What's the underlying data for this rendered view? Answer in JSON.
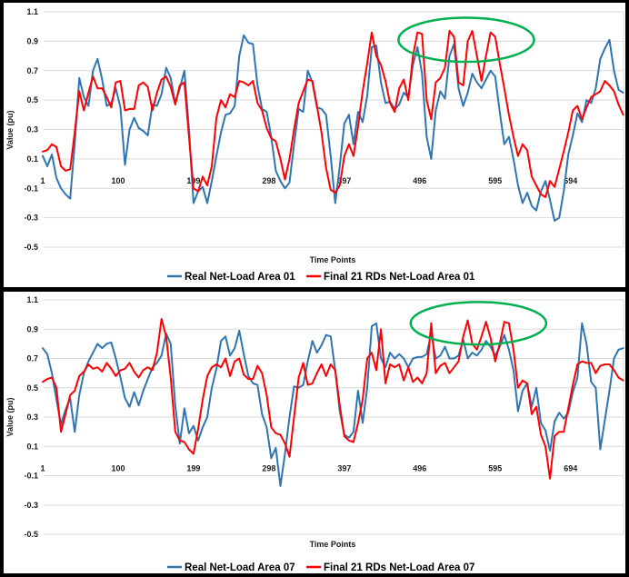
{
  "page": {
    "background": "#000000",
    "panel_background": "#FFFFFF",
    "gridline_color": "#D9D9D9",
    "annotation_color": "#00B050"
  },
  "chart_data": [
    {
      "type": "line",
      "title": "",
      "xlabel": "Time Points",
      "ylabel": "Value (pu)",
      "ylim": [
        -0.5,
        1.1
      ],
      "xlim": [
        1,
        763
      ],
      "grid": "horizontal",
      "legend_position": "bottom",
      "yticks": [
        "1.1",
        "0.9",
        "0.7",
        "0.5",
        "0.3",
        "0.1",
        "-0.1",
        "-0.3",
        "-0.5"
      ],
      "xticks": [
        1,
        100,
        199,
        298,
        397,
        496,
        595,
        694
      ],
      "x": [
        1,
        7,
        13,
        19,
        25,
        31,
        37,
        43,
        49,
        55,
        61,
        67,
        73,
        79,
        85,
        91,
        97,
        103,
        109,
        115,
        121,
        127,
        133,
        139,
        145,
        151,
        157,
        163,
        169,
        175,
        181,
        187,
        193,
        199,
        205,
        211,
        217,
        223,
        229,
        235,
        241,
        247,
        253,
        259,
        265,
        271,
        277,
        283,
        289,
        295,
        301,
        307,
        313,
        319,
        325,
        331,
        337,
        343,
        349,
        355,
        361,
        367,
        373,
        379,
        385,
        391,
        397,
        403,
        409,
        415,
        421,
        427,
        433,
        439,
        445,
        451,
        457,
        463,
        469,
        475,
        481,
        487,
        493,
        499,
        505,
        511,
        517,
        523,
        529,
        535,
        541,
        547,
        553,
        559,
        565,
        571,
        577,
        583,
        589,
        595,
        601,
        607,
        613,
        619,
        625,
        631,
        637,
        643,
        649,
        655,
        661,
        667,
        673,
        679,
        685,
        691,
        697,
        703,
        709,
        715,
        721,
        727,
        733,
        739,
        745,
        751,
        757,
        763
      ],
      "series": [
        {
          "name": "Real Net-Load Area 01",
          "color": "#2E75B6",
          "values": [
            0.12,
            0.05,
            0.13,
            -0.03,
            -0.1,
            -0.14,
            -0.17,
            0.2,
            0.65,
            0.52,
            0.46,
            0.7,
            0.78,
            0.64,
            0.46,
            0.48,
            0.58,
            0.45,
            0.06,
            0.3,
            0.38,
            0.31,
            0.29,
            0.26,
            0.47,
            0.46,
            0.54,
            0.72,
            0.65,
            0.48,
            0.58,
            0.7,
            0.3,
            -0.2,
            -0.12,
            -0.09,
            -0.2,
            -0.05,
            0.12,
            0.28,
            0.4,
            0.41,
            0.46,
            0.8,
            0.94,
            0.89,
            0.88,
            0.6,
            0.44,
            0.42,
            0.25,
            0.02,
            -0.05,
            -0.1,
            -0.06,
            0.2,
            0.44,
            0.42,
            0.7,
            0.62,
            0.45,
            0.44,
            0.4,
            0.12,
            -0.2,
            0.05,
            0.34,
            0.4,
            0.2,
            0.42,
            0.35,
            0.53,
            0.86,
            0.87,
            0.62,
            0.48,
            0.49,
            0.44,
            0.47,
            0.55,
            0.52,
            0.74,
            0.86,
            0.68,
            0.25,
            0.1,
            0.43,
            0.56,
            0.51,
            0.8,
            0.88,
            0.58,
            0.46,
            0.55,
            0.68,
            0.62,
            0.58,
            0.64,
            0.7,
            0.66,
            0.42,
            0.2,
            0.25,
            0.1,
            -0.08,
            -0.2,
            -0.13,
            -0.22,
            -0.25,
            -0.12,
            -0.05,
            -0.18,
            -0.32,
            -0.3,
            -0.12,
            0.13,
            0.26,
            0.41,
            0.35,
            0.5,
            0.48,
            0.58,
            0.78,
            0.85,
            0.91,
            0.7,
            0.57,
            0.55
          ]
        },
        {
          "name": "Final 21 RDs Net-Load Area 01",
          "color": "#FF0000",
          "values": [
            0.15,
            0.16,
            0.2,
            0.18,
            0.05,
            0.02,
            0.03,
            0.28,
            0.56,
            0.43,
            0.55,
            0.66,
            0.58,
            0.58,
            0.52,
            0.45,
            0.62,
            0.63,
            0.43,
            0.44,
            0.44,
            0.6,
            0.62,
            0.59,
            0.43,
            0.55,
            0.64,
            0.66,
            0.59,
            0.47,
            0.6,
            0.62,
            0.25,
            -0.1,
            -0.12,
            -0.02,
            -0.08,
            0.05,
            0.38,
            0.5,
            0.45,
            0.54,
            0.52,
            0.63,
            0.62,
            0.6,
            0.63,
            0.48,
            0.43,
            0.31,
            0.24,
            0.22,
            0.1,
            -0.04,
            0.1,
            0.3,
            0.48,
            0.56,
            0.64,
            0.63,
            0.46,
            0.28,
            0.04,
            -0.11,
            -0.13,
            -0.08,
            0.12,
            0.2,
            0.12,
            0.32,
            0.56,
            0.75,
            0.96,
            0.8,
            0.74,
            0.63,
            0.48,
            0.42,
            0.58,
            0.64,
            0.5,
            0.8,
            0.96,
            0.95,
            0.5,
            0.37,
            0.62,
            0.65,
            0.72,
            0.97,
            0.93,
            0.62,
            0.6,
            0.9,
            0.97,
            0.8,
            0.63,
            0.8,
            0.96,
            0.93,
            0.75,
            0.58,
            0.4,
            0.25,
            0.12,
            0.2,
            0.16,
            -0.02,
            -0.08,
            -0.14,
            -0.16,
            -0.05,
            -0.09,
            0.03,
            0.15,
            0.28,
            0.43,
            0.46,
            0.37,
            0.45,
            0.52,
            0.54,
            0.56,
            0.63,
            0.6,
            0.56,
            0.47,
            0.4
          ]
        }
      ],
      "annotation": {
        "shape": "ellipse",
        "color": "#00B050",
        "t_center": 557,
        "v_center": 0.91,
        "t_radius": 89,
        "v_radius": 0.15
      }
    },
    {
      "type": "line",
      "title": "",
      "xlabel": "Time Points",
      "ylabel": "Value (pu)",
      "ylim": [
        -0.5,
        1.1
      ],
      "xlim": [
        1,
        763
      ],
      "grid": "horizontal",
      "legend_position": "bottom",
      "yticks": [
        "1.1",
        "0.9",
        "0.7",
        "0.5",
        "0.3",
        "0.1",
        "-0.1",
        "-0.3",
        "-0.5"
      ],
      "xticks": [
        1,
        100,
        199,
        298,
        397,
        496,
        595,
        694
      ],
      "x": [
        1,
        7,
        13,
        19,
        25,
        31,
        37,
        43,
        49,
        55,
        61,
        67,
        73,
        79,
        85,
        91,
        97,
        103,
        109,
        115,
        121,
        127,
        133,
        139,
        145,
        151,
        157,
        163,
        169,
        175,
        181,
        187,
        193,
        199,
        205,
        211,
        217,
        223,
        229,
        235,
        241,
        247,
        253,
        259,
        265,
        271,
        277,
        283,
        289,
        295,
        301,
        307,
        313,
        319,
        325,
        331,
        337,
        343,
        349,
        355,
        361,
        367,
        373,
        379,
        385,
        391,
        397,
        403,
        409,
        415,
        421,
        427,
        433,
        439,
        445,
        451,
        457,
        463,
        469,
        475,
        481,
        487,
        493,
        499,
        505,
        511,
        517,
        523,
        529,
        535,
        541,
        547,
        553,
        559,
        565,
        571,
        577,
        583,
        589,
        595,
        601,
        607,
        613,
        619,
        625,
        631,
        637,
        643,
        649,
        655,
        661,
        667,
        673,
        679,
        685,
        691,
        697,
        703,
        709,
        715,
        721,
        727,
        733,
        739,
        745,
        751,
        757,
        763
      ],
      "series": [
        {
          "name": "Real Net-Load Area 07",
          "color": "#2E75B6",
          "values": [
            0.77,
            0.73,
            0.6,
            0.42,
            0.25,
            0.35,
            0.43,
            0.2,
            0.45,
            0.6,
            0.68,
            0.74,
            0.8,
            0.77,
            0.8,
            0.81,
            0.7,
            0.57,
            0.43,
            0.37,
            0.47,
            0.38,
            0.48,
            0.56,
            0.64,
            0.67,
            0.72,
            0.87,
            0.8,
            0.38,
            0.12,
            0.36,
            0.19,
            0.24,
            0.14,
            0.23,
            0.3,
            0.5,
            0.63,
            0.82,
            0.85,
            0.72,
            0.77,
            0.89,
            0.73,
            0.58,
            0.53,
            0.52,
            0.32,
            0.23,
            0.02,
            0.09,
            -0.17,
            0.05,
            0.3,
            0.51,
            0.5,
            0.52,
            0.68,
            0.82,
            0.74,
            0.79,
            0.86,
            0.85,
            0.62,
            0.34,
            0.18,
            0.16,
            0.2,
            0.48,
            0.26,
            0.5,
            0.92,
            0.94,
            0.7,
            0.64,
            0.74,
            0.7,
            0.73,
            0.7,
            0.64,
            0.7,
            0.71,
            0.71,
            0.73,
            0.87,
            0.7,
            0.72,
            0.78,
            0.7,
            0.7,
            0.72,
            0.83,
            0.7,
            0.74,
            0.72,
            0.76,
            0.82,
            0.78,
            0.72,
            0.78,
            0.86,
            0.76,
            0.62,
            0.34,
            0.48,
            0.53,
            0.37,
            0.5,
            0.26,
            0.21,
            0.07,
            0.27,
            0.33,
            0.29,
            0.33,
            0.47,
            0.57,
            0.94,
            0.8,
            0.54,
            0.5,
            0.08,
            0.28,
            0.48,
            0.7,
            0.76,
            0.77
          ]
        },
        {
          "name": "Final 21 RDs Net-Load Area 07",
          "color": "#FF0000",
          "values": [
            0.54,
            0.56,
            0.57,
            0.5,
            0.2,
            0.32,
            0.45,
            0.48,
            0.58,
            0.61,
            0.66,
            0.63,
            0.64,
            0.61,
            0.67,
            0.63,
            0.58,
            0.62,
            0.63,
            0.67,
            0.61,
            0.57,
            0.62,
            0.64,
            0.62,
            0.74,
            0.97,
            0.85,
            0.57,
            0.2,
            0.14,
            0.13,
            0.08,
            0.05,
            0.22,
            0.42,
            0.58,
            0.64,
            0.66,
            0.64,
            0.7,
            0.58,
            0.68,
            0.7,
            0.59,
            0.56,
            0.56,
            0.65,
            0.6,
            0.45,
            0.23,
            0.19,
            0.18,
            0.12,
            0.03,
            0.3,
            0.57,
            0.67,
            0.52,
            0.53,
            0.6,
            0.66,
            0.58,
            0.66,
            0.62,
            0.38,
            0.17,
            0.14,
            0.13,
            0.26,
            0.42,
            0.7,
            0.74,
            0.62,
            0.9,
            0.53,
            0.66,
            0.64,
            0.66,
            0.55,
            0.64,
            0.54,
            0.57,
            0.53,
            0.6,
            0.94,
            0.6,
            0.65,
            0.67,
            0.6,
            0.64,
            0.68,
            0.85,
            0.96,
            0.8,
            0.76,
            0.85,
            0.95,
            0.84,
            0.68,
            0.8,
            0.95,
            0.94,
            0.76,
            0.5,
            0.55,
            0.53,
            0.32,
            0.37,
            0.18,
            0.1,
            -0.12,
            0.17,
            0.2,
            0.2,
            0.36,
            0.52,
            0.66,
            0.68,
            0.67,
            0.67,
            0.6,
            0.65,
            0.66,
            0.66,
            0.62,
            0.57,
            0.55
          ]
        }
      ],
      "annotation": {
        "shape": "ellipse",
        "color": "#00B050",
        "t_center": 573,
        "v_center": 0.94,
        "t_radius": 89,
        "v_radius": 0.145
      }
    }
  ]
}
